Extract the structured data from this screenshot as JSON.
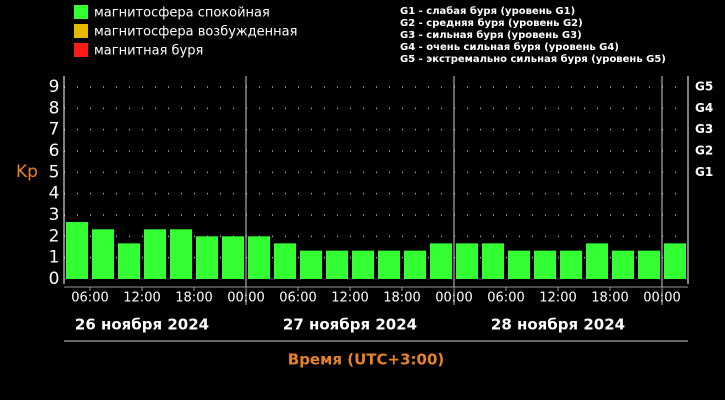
{
  "chart_data": {
    "type": "bar",
    "legend": [
      {
        "name": "магнитосфера спокойная",
        "color": "#33ff33"
      },
      {
        "name": "магнитосфера возбужденная",
        "color": "#e6b800"
      },
      {
        "name": "магнитная буря",
        "color": "#ff1a1a"
      }
    ],
    "storm_levels": [
      "G1 - слабая буря (уровень G1)",
      "G2 - средняя буря (уровень G2)",
      "G3 - сильная буря (уровень G3)",
      "G4 - очень сильная буря (уровень G4)",
      "G5 - экстремально сильная буря (уровень G5)"
    ],
    "y_label": "Kp",
    "x_label": "Время (UTC+3:00)",
    "categories": [
      null,
      null,
      null,
      null,
      null,
      null,
      null,
      null,
      null,
      null,
      null,
      null,
      null,
      null,
      null,
      null,
      null,
      null,
      null,
      null,
      null,
      null,
      null,
      null
    ],
    "values": [
      2.67,
      2.33,
      1.67,
      2.33,
      2.33,
      2,
      2,
      2,
      1.67,
      1.33,
      1.33,
      1.33,
      1.33,
      1.33,
      1.67,
      1.67,
      1.67,
      1.33,
      1.33,
      1.33,
      1.67,
      1.33,
      1.33,
      1.67
    ],
    "color": "#33ff33",
    "ylim": [
      0,
      9
    ],
    "yticks": [
      0,
      1,
      2,
      3,
      4,
      5,
      6,
      7,
      8,
      9
    ],
    "y2ticks": [
      {
        "value": 5,
        "label": "G1"
      },
      {
        "value": 6,
        "label": "G2"
      },
      {
        "value": 7,
        "label": "G3"
      },
      {
        "value": 8,
        "label": "G4"
      },
      {
        "value": 9,
        "label": "G5"
      }
    ],
    "xtick_labels": [
      "06:00",
      "12:00",
      "18:00",
      "00:00",
      "06:00",
      "12:00",
      "18:00",
      "00:00",
      "06:00",
      "12:00",
      "18:00",
      "00:00"
    ],
    "days": [
      "26 ноября 2024",
      "27 ноября 2024",
      "28 ноября 2024"
    ],
    "grid": true
  }
}
